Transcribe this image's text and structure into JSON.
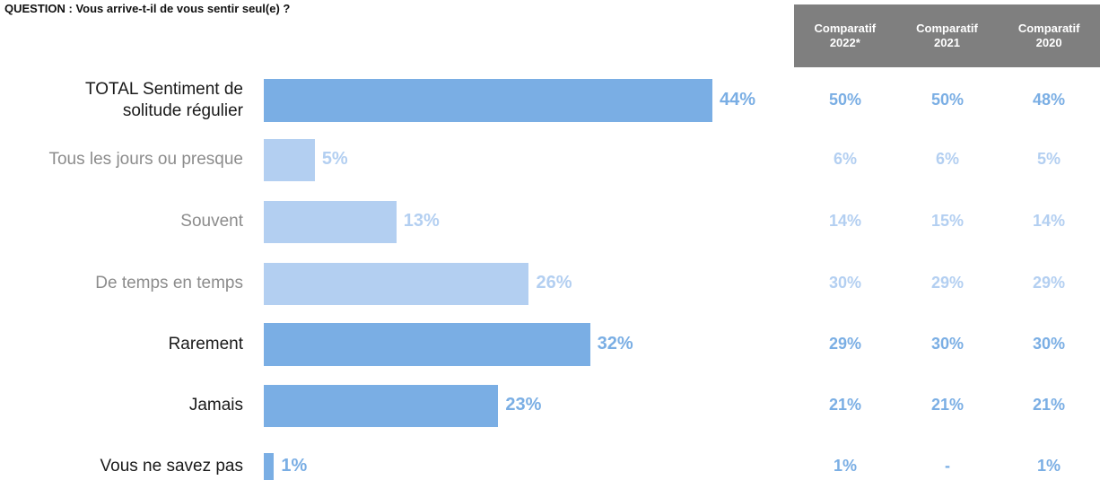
{
  "question": "QUESTION : Vous arrive-t-il de vous sentir seul(e) ?",
  "comparatif_headers": [
    {
      "line1": "Comparatif",
      "line2": "2022*"
    },
    {
      "line1": "Comparatif",
      "line2": "2021"
    },
    {
      "line1": "Comparatif",
      "line2": "2020"
    }
  ],
  "colors": {
    "strong": "#7aaee4",
    "light": "#b3cff1",
    "header_bg": "#7f7f7f"
  },
  "chart_data": {
    "type": "bar",
    "orientation": "horizontal",
    "categories": [
      "TOTAL Sentiment de solitude régulier",
      "Tous les jours ou presque",
      "Souvent",
      "De temps en temps",
      "Rarement",
      "Jamais",
      "Vous ne savez pas"
    ],
    "label_lines": [
      [
        "TOTAL Sentiment de",
        "solitude régulier"
      ],
      [
        "Tous les jours ou presque"
      ],
      [
        "Souvent"
      ],
      [
        "De temps en temps"
      ],
      [
        "Rarement"
      ],
      [
        "Jamais"
      ],
      [
        "Vous ne savez pas"
      ]
    ],
    "values": [
      44,
      5,
      13,
      26,
      32,
      23,
      1
    ],
    "value_labels": [
      "44%",
      "5%",
      "13%",
      "26%",
      "32%",
      "23%",
      "1%"
    ],
    "emphasis": [
      "strong",
      "light",
      "light",
      "light",
      "strong",
      "strong",
      "strong"
    ],
    "comparatifs": [
      [
        "50%",
        "50%",
        "48%"
      ],
      [
        "6%",
        "6%",
        "5%"
      ],
      [
        "14%",
        "15%",
        "14%"
      ],
      [
        "30%",
        "29%",
        "29%"
      ],
      [
        "29%",
        "30%",
        "30%"
      ],
      [
        "21%",
        "21%",
        "21%"
      ],
      [
        "1%",
        "-",
        "1%"
      ]
    ],
    "xlim": [
      0,
      44
    ],
    "grid": false
  }
}
